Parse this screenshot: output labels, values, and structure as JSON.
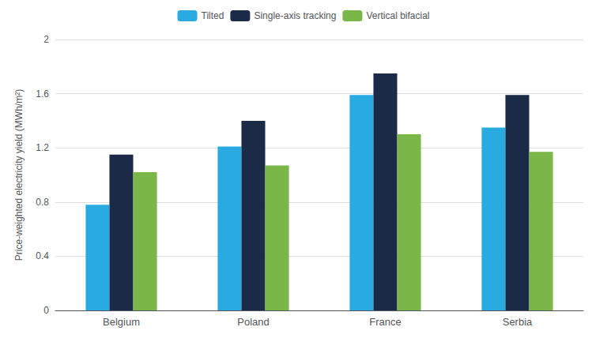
{
  "chart_data": {
    "type": "bar",
    "ylabel": "Price-weighted electricity yield (MWh/m²)",
    "categories": [
      "Belgium",
      "Poland",
      "France",
      "Serbia"
    ],
    "series": [
      {
        "name": "Tilted",
        "color": "#29ABE2",
        "values": [
          0.78,
          1.21,
          1.59,
          1.35
        ]
      },
      {
        "name": "Single-axis tracking",
        "color": "#1B2A47",
        "values": [
          1.15,
          1.4,
          1.75,
          1.59
        ]
      },
      {
        "name": "Vertical bifacial",
        "color": "#7AB648",
        "values": [
          1.02,
          1.07,
          1.3,
          1.17
        ]
      }
    ],
    "ylim": [
      0,
      2.0
    ],
    "yticks": [
      0,
      0.4,
      0.8,
      1.2,
      1.6,
      2
    ],
    "grid": true,
    "legend": "top"
  }
}
